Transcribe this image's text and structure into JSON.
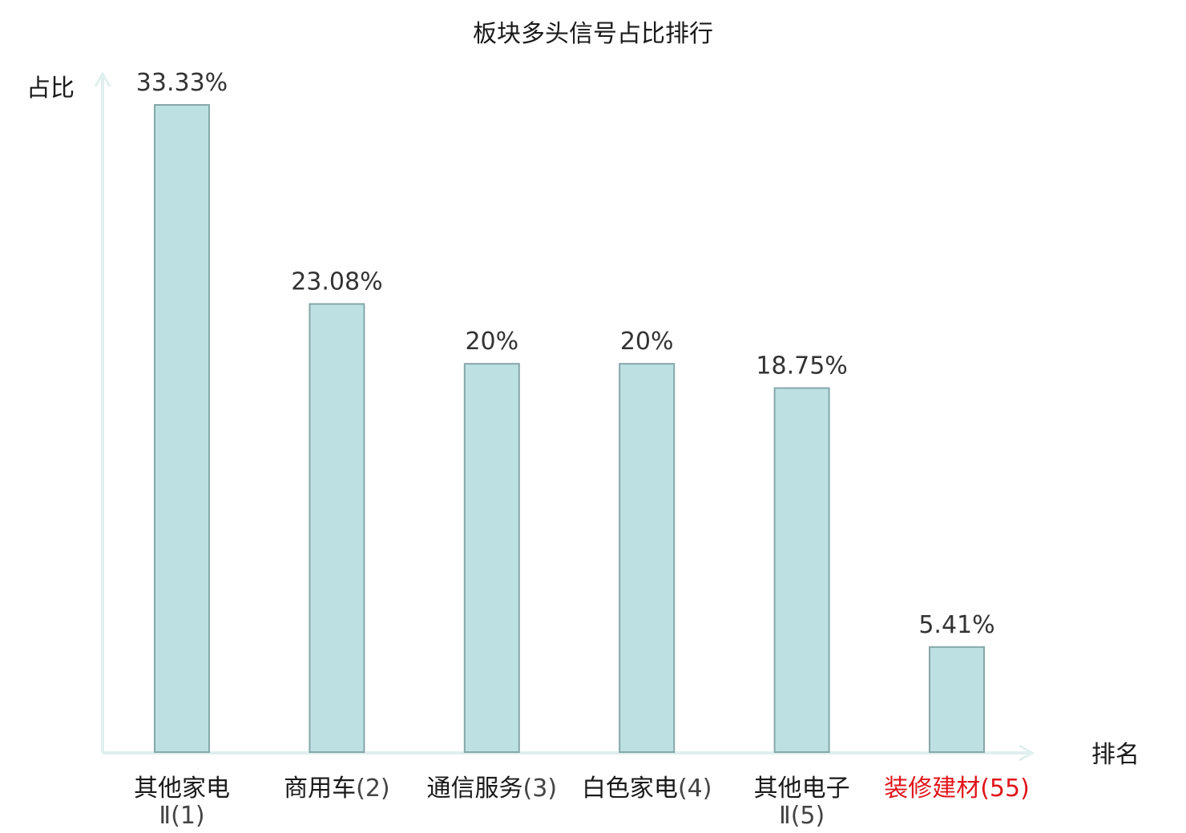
{
  "chart_data": {
    "type": "bar",
    "title": "板块多头信号占比排行",
    "ylabel": "占比",
    "xlabel": "排名",
    "categories": [
      {
        "name": "其他家电",
        "rank": "Ⅱ(1)",
        "highlight": false
      },
      {
        "name": "商用车",
        "rank": "(2)",
        "highlight": false
      },
      {
        "name": "通信服务",
        "rank": "(3)",
        "highlight": false
      },
      {
        "name": "白色家电",
        "rank": "(4)",
        "highlight": false
      },
      {
        "name": "其他电子",
        "rank": "Ⅱ(5)",
        "highlight": false
      },
      {
        "name": "装修建材",
        "rank": "(55)",
        "highlight": true
      }
    ],
    "values": [
      33.33,
      23.08,
      20,
      20,
      18.75,
      5.41
    ],
    "value_labels": [
      "33.33%",
      "23.08%",
      "20%",
      "20%",
      "18.75%",
      "5.41%"
    ],
    "ylim": [
      0,
      33.33
    ],
    "grid": false,
    "colors": {
      "bar_fill": "#bde0e3",
      "bar_stroke": "#86a7a9",
      "axis": "#dff0ee",
      "highlight": "#e0151b"
    }
  }
}
